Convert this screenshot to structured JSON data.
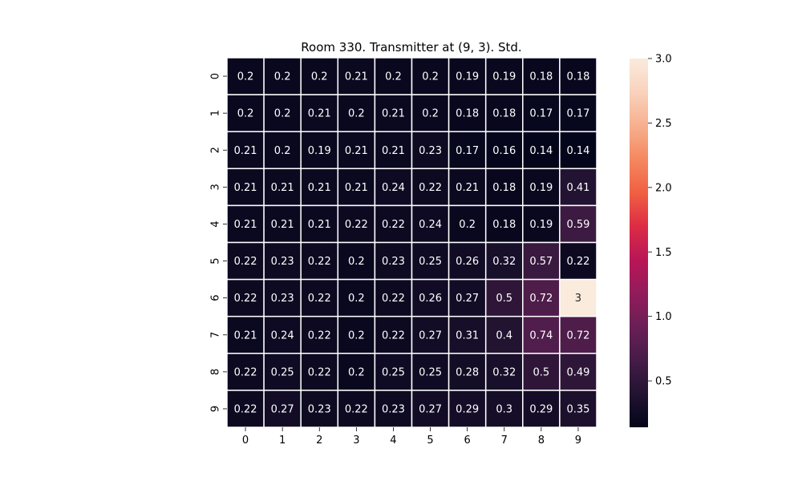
{
  "chart_data": {
    "type": "heatmap",
    "title": "Room 330. Transmitter at (9, 3). Std.",
    "x_labels": [
      "0",
      "1",
      "2",
      "3",
      "4",
      "5",
      "6",
      "7",
      "8",
      "9"
    ],
    "y_labels": [
      "0",
      "1",
      "2",
      "3",
      "4",
      "5",
      "6",
      "7",
      "8",
      "9"
    ],
    "values": [
      [
        0.2,
        0.2,
        0.2,
        0.21,
        0.2,
        0.2,
        0.19,
        0.19,
        0.18,
        0.18
      ],
      [
        0.2,
        0.2,
        0.21,
        0.2,
        0.21,
        0.2,
        0.18,
        0.18,
        0.17,
        0.17
      ],
      [
        0.21,
        0.2,
        0.19,
        0.21,
        0.21,
        0.23,
        0.17,
        0.16,
        0.14,
        0.14
      ],
      [
        0.21,
        0.21,
        0.21,
        0.21,
        0.24,
        0.22,
        0.21,
        0.18,
        0.19,
        0.41
      ],
      [
        0.21,
        0.21,
        0.21,
        0.22,
        0.22,
        0.24,
        0.2,
        0.18,
        0.19,
        0.59
      ],
      [
        0.22,
        0.23,
        0.22,
        0.2,
        0.23,
        0.25,
        0.26,
        0.32,
        0.57,
        0.22
      ],
      [
        0.22,
        0.23,
        0.22,
        0.2,
        0.22,
        0.26,
        0.27,
        0.5,
        0.72,
        3
      ],
      [
        0.21,
        0.24,
        0.22,
        0.2,
        0.22,
        0.27,
        0.31,
        0.4,
        0.74,
        0.72
      ],
      [
        0.22,
        0.25,
        0.22,
        0.2,
        0.25,
        0.25,
        0.28,
        0.32,
        0.5,
        0.49
      ],
      [
        0.22,
        0.27,
        0.23,
        0.22,
        0.23,
        0.27,
        0.29,
        0.3,
        0.29,
        0.35
      ]
    ],
    "colorbar": {
      "min": 0.14,
      "max": 3.0,
      "ticks": [
        0.5,
        1.0,
        1.5,
        2.0,
        2.5,
        3.0
      ],
      "tick_labels": [
        "0.5",
        "1.0",
        "1.5",
        "2.0",
        "2.5",
        "3.0"
      ],
      "colormap": "rocket",
      "colors": [
        "#03051a",
        "#221331",
        "#451c47",
        "#6a1f56",
        "#921c5b",
        "#b91657",
        "#dd2c45",
        "#f06043",
        "#f58860",
        "#f7b08f",
        "#f9d2bd",
        "#faebdd"
      ]
    },
    "grid": true,
    "legend": "none"
  }
}
